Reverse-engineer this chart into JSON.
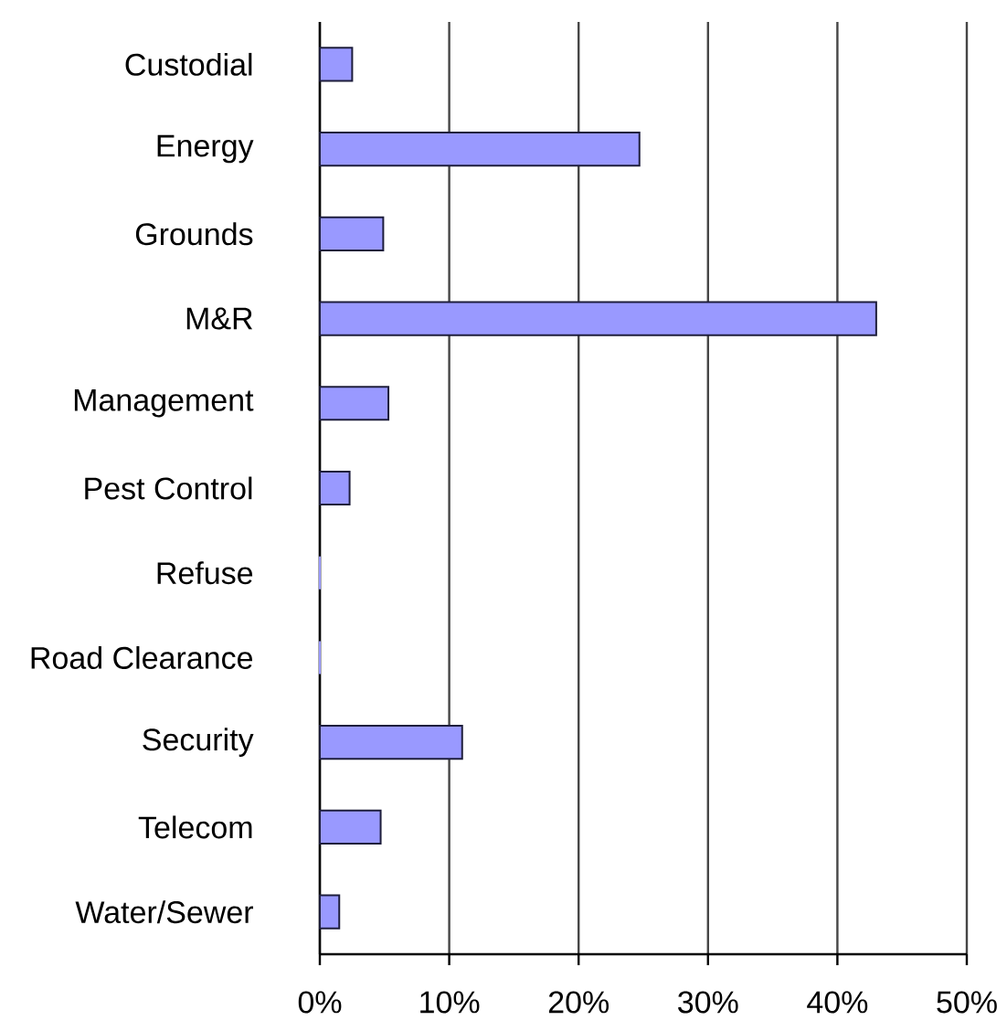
{
  "chart_data": {
    "type": "bar",
    "orientation": "horizontal",
    "categories": [
      "Custodial",
      "Energy",
      "Grounds",
      "M&R",
      "Management",
      "Pest Control",
      "Refuse",
      "Road Clearance",
      "Security",
      "Telecom",
      "Water/Sewer"
    ],
    "values": [
      2.5,
      24.7,
      4.9,
      43.0,
      5.3,
      2.3,
      0,
      0,
      11.0,
      4.7,
      1.5
    ],
    "color": "#9999ff",
    "xlim": [
      0,
      50
    ],
    "xticks": [
      {
        "value": 0,
        "label": "0%"
      },
      {
        "value": 10,
        "label": "10%"
      },
      {
        "value": 20,
        "label": "20%"
      },
      {
        "value": 30,
        "label": "30%"
      },
      {
        "value": 40,
        "label": "40%"
      },
      {
        "value": 50,
        "label": "50%"
      }
    ],
    "grid": "x"
  }
}
